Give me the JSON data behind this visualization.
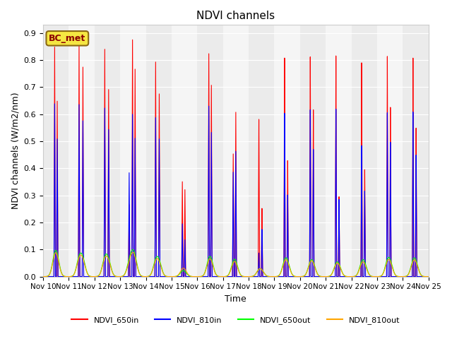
{
  "title": "NDVI channels",
  "ylabel": "NDVI channels (W/m2/nm)",
  "xlabel": "Time",
  "bc_label": "BC_met",
  "legend_labels": [
    "NDVI_650in",
    "NDVI_810in",
    "NDVI_650out",
    "NDVI_810out"
  ],
  "legend_colors": [
    "red",
    "blue",
    "green",
    "orange"
  ],
  "x_tick_labels": [
    "Nov 10",
    "Nov 11",
    "Nov 12",
    "Nov 13",
    "Nov 14",
    "Nov 15",
    "Nov 16",
    "Nov 17",
    "Nov 18",
    "Nov 19",
    "Nov 20",
    "Nov 21",
    "Nov 22",
    "Nov 23",
    "Nov 24",
    "Nov 25"
  ],
  "ylim": [
    0.0,
    0.93
  ],
  "band_colors": [
    "#ebebeb",
    "#f5f5f5"
  ]
}
